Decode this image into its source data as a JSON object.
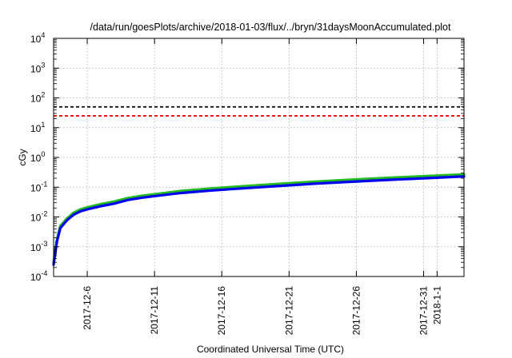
{
  "chart_data": {
    "type": "line",
    "title": "/data/run/goesPlots/archive/2018-01-03/flux/../bryn/31daysMoonAccumulated.plot",
    "xlabel": "Coordinated Universal Time (UTC)",
    "ylabel": "cGy",
    "y_scale": "log",
    "ylim": [
      0.0001,
      10000
    ],
    "y_ticks": [
      {
        "value": 0.0001,
        "base": "10",
        "exp": "-4"
      },
      {
        "value": 0.001,
        "base": "10",
        "exp": "-3"
      },
      {
        "value": 0.01,
        "base": "10",
        "exp": "-2"
      },
      {
        "value": 0.1,
        "base": "10",
        "exp": "-1"
      },
      {
        "value": 1,
        "base": "10",
        "exp": "0"
      },
      {
        "value": 10,
        "base": "10",
        "exp": "1"
      },
      {
        "value": 100,
        "base": "10",
        "exp": "2"
      },
      {
        "value": 1000,
        "base": "10",
        "exp": "3"
      },
      {
        "value": 10000,
        "base": "10",
        "exp": "4"
      }
    ],
    "xlim": [
      "2017-12-03T12:00",
      "2018-01-03T00:00"
    ],
    "x_ticks": [
      {
        "date": "2017-12-06",
        "label": "2017-12-6"
      },
      {
        "date": "2017-12-11",
        "label": "2017-12-11"
      },
      {
        "date": "2017-12-16",
        "label": "2017-12-16"
      },
      {
        "date": "2017-12-21",
        "label": "2017-12-21"
      },
      {
        "date": "2017-12-26",
        "label": "2017-12-26"
      },
      {
        "date": "2017-12-31",
        "label": "2017-12-31"
      },
      {
        "date": "2018-01-01",
        "label": "2018-1-1"
      }
    ],
    "grid": true,
    "reference_lines": [
      {
        "y": 50,
        "color": "#000000",
        "style": "dashed"
      },
      {
        "y": 25,
        "color": "#ff0000",
        "style": "dashed"
      }
    ],
    "series": [
      {
        "color": "#22bb22",
        "x": [
          "2017-12-03T12:00",
          "2017-12-03T18:00",
          "2017-12-04T00:00",
          "2017-12-04T12:00",
          "2017-12-05T00:00",
          "2017-12-05T12:00",
          "2017-12-06T00:00",
          "2017-12-07T00:00",
          "2017-12-08T00:00",
          "2017-12-09T00:00",
          "2017-12-10T00:00",
          "2017-12-11T00:00",
          "2017-12-13T00:00",
          "2017-12-15T00:00",
          "2017-12-17T00:00",
          "2017-12-20T00:00",
          "2017-12-23T00:00",
          "2017-12-26T00:00",
          "2017-12-29T00:00",
          "2018-01-01T00:00",
          "2018-01-03T00:00"
        ],
        "values": [
          0.0003,
          0.0018,
          0.005,
          0.009,
          0.014,
          0.018,
          0.021,
          0.027,
          0.033,
          0.043,
          0.051,
          0.058,
          0.075,
          0.089,
          0.103,
          0.127,
          0.155,
          0.183,
          0.213,
          0.245,
          0.27
        ]
      },
      {
        "color": "#0000ee",
        "x": [
          "2017-12-03T12:00",
          "2017-12-03T18:00",
          "2017-12-04T00:00",
          "2017-12-04T12:00",
          "2017-12-05T00:00",
          "2017-12-05T12:00",
          "2017-12-06T00:00",
          "2017-12-07T00:00",
          "2017-12-08T00:00",
          "2017-12-09T00:00",
          "2017-12-10T00:00",
          "2017-12-11T00:00",
          "2017-12-13T00:00",
          "2017-12-15T00:00",
          "2017-12-17T00:00",
          "2017-12-20T00:00",
          "2017-12-23T00:00",
          "2017-12-26T00:00",
          "2017-12-29T00:00",
          "2018-01-01T00:00",
          "2018-01-03T00:00"
        ],
        "values": [
          0.00025,
          0.0015,
          0.0042,
          0.0078,
          0.012,
          0.0155,
          0.018,
          0.023,
          0.028,
          0.037,
          0.044,
          0.05,
          0.064,
          0.076,
          0.088,
          0.108,
          0.132,
          0.155,
          0.181,
          0.208,
          0.23
        ]
      }
    ]
  }
}
